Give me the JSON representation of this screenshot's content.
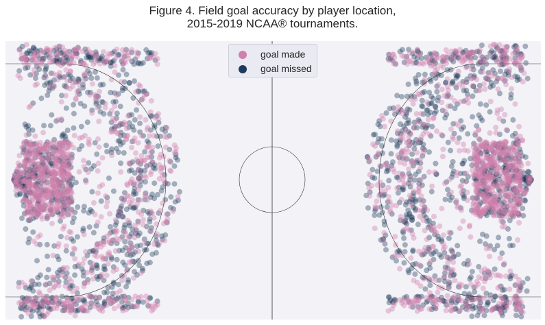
{
  "title_line1": "Figure 4. Field goal accuracy by player location,",
  "title_line2": "2015-2019 NCAA® tournaments.",
  "colors": {
    "background": "#f2f2f7",
    "made": "#d17fad",
    "missed": "#1f3a5a",
    "lines": "#333333"
  },
  "legend": {
    "made_label": "goal made",
    "missed_label": "goal missed"
  },
  "chart_data": {
    "type": "scatter",
    "title": "Figure 4. Field goal accuracy by player location, 2015-2019 NCAA® tournaments.",
    "xlabel": "",
    "ylabel": "",
    "grid": false,
    "legend_position": "top-center",
    "series": [
      {
        "name": "goal made",
        "color": "#d17fad"
      },
      {
        "name": "goal missed",
        "color": "#1f3a5a"
      }
    ],
    "notes": "Individual shot locations on a lacrosse field; densest at the goal areas and along the arcs around each goal."
  }
}
